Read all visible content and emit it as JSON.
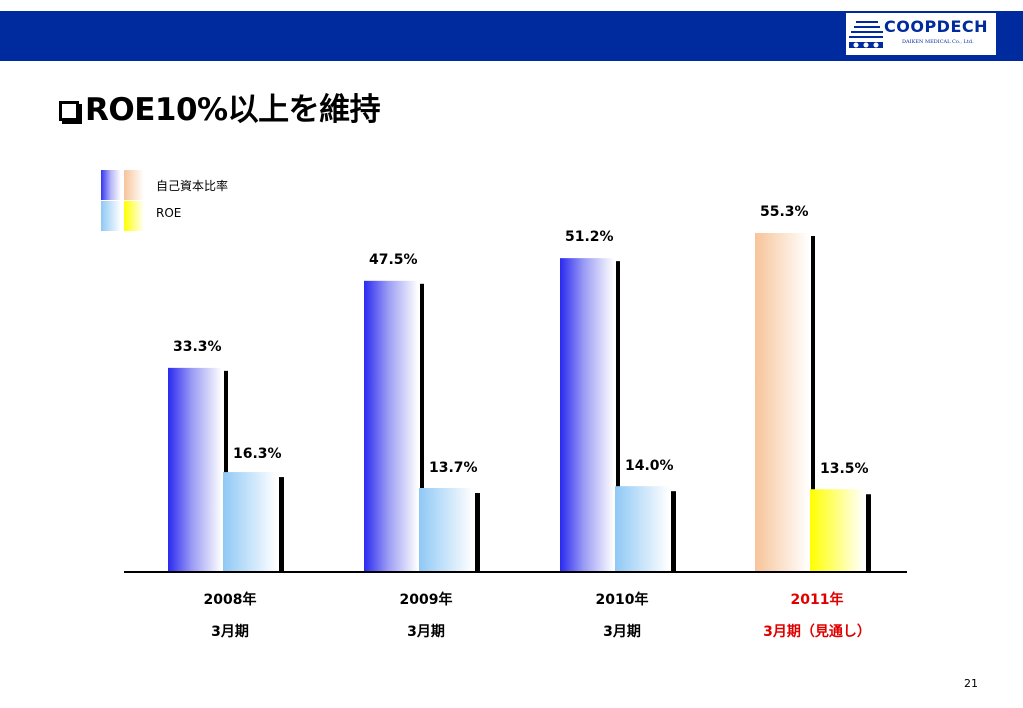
{
  "header": {
    "logo_word": "COOPDECH",
    "logo_subtext": "DAIKEN MEDICAL Co., Ltd."
  },
  "slide": {
    "title": "ROE10%以上を維持",
    "page_number": "21"
  },
  "legend": [
    {
      "label": "自己資本比率"
    },
    {
      "label": "ROE"
    }
  ],
  "colors": {
    "header": "#002b9e",
    "equity_actual": "#3535f0",
    "roe_actual": "#8fc8f5",
    "equity_forecast": "#f7c49a",
    "roe_forecast": "#ffff00",
    "forecast_label": "#e00000"
  },
  "chart_data": {
    "type": "bar",
    "title": "",
    "xlabel": "",
    "ylabel": "",
    "ylim": [
      0,
      60
    ],
    "categories": [
      {
        "year": "2008年",
        "period": "3月期",
        "forecast": false
      },
      {
        "year": "2009年",
        "period": "3月期",
        "forecast": false
      },
      {
        "year": "2010年",
        "period": "3月期",
        "forecast": false
      },
      {
        "year": "2011年",
        "period": "3月期（見通し）",
        "forecast": true
      }
    ],
    "series": [
      {
        "name": "自己資本比率",
        "values": [
          33.3,
          47.5,
          51.2,
          55.3
        ],
        "labels": [
          "33.3%",
          "47.5%",
          "51.2%",
          "55.3%"
        ]
      },
      {
        "name": "ROE",
        "values": [
          16.3,
          13.7,
          14.0,
          13.5
        ],
        "labels": [
          "16.3%",
          "13.7%",
          "14.0%",
          "13.5%"
        ]
      }
    ]
  }
}
